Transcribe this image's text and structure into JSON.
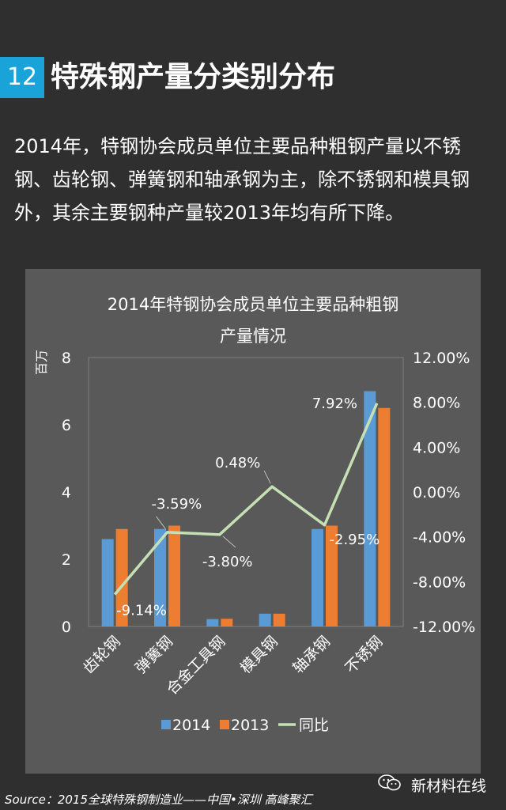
{
  "header": {
    "number": "12",
    "title": "特殊钢产量分类别分布"
  },
  "intro": "2014年，特钢协会成员单位主要品种粗钢产量以不锈钢、齿轮钢、弹簧钢和轴承钢为主，除不锈钢和模具钢外，其余主要钢种产量较2013年均有所下降。",
  "chart_data": {
    "type": "bar",
    "title_lines": [
      "2014年特钢协会成员单位主要品种粗钢",
      "产量情况"
    ],
    "ylabel": "百万",
    "categories": [
      "齿轮钢",
      "弹簧钢",
      "合金工具钢",
      "模具钢",
      "轴承钢",
      "不锈钢"
    ],
    "series": [
      {
        "name": "2014",
        "values": [
          2.6,
          2.9,
          0.22,
          0.38,
          2.9,
          7.0
        ],
        "color": "#5b9bd5"
      },
      {
        "name": "2013",
        "values": [
          2.9,
          3.0,
          0.23,
          0.38,
          3.0,
          6.5
        ],
        "color": "#ed7d31"
      }
    ],
    "line_series": {
      "name": "同比",
      "values": [
        -9.14,
        -3.59,
        -3.8,
        0.48,
        -2.95,
        7.92
      ],
      "labels": [
        "-9.14%",
        "-3.59%",
        "-3.80%",
        "0.48%",
        "-2.95%",
        "7.92%"
      ],
      "color": "#c5e0b4"
    },
    "ylim": [
      0,
      8
    ],
    "yticks": [
      0,
      2,
      4,
      6,
      8
    ],
    "y2lim": [
      -12,
      12
    ],
    "y2ticks": [
      "-12.00%",
      "-8.00%",
      "-4.00%",
      "0.00%",
      "4.00%",
      "8.00%",
      "12.00%"
    ],
    "legend_position": "bottom"
  },
  "source": "Source：2015全球特殊钢制造业——中国•深圳 高峰聚汇",
  "brand": {
    "name": "新材料在线",
    "icon": "wechat-icon"
  }
}
